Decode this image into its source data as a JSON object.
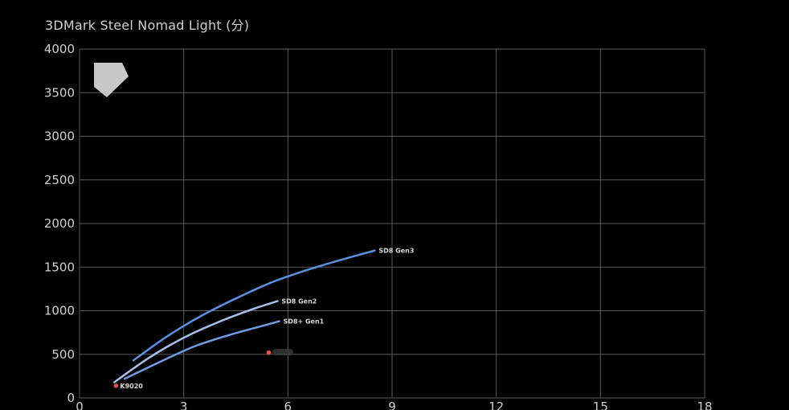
{
  "chart_data": {
    "type": "line",
    "title": "3DMark Steel Nomad Light (分)",
    "xlabel": "",
    "ylabel": "",
    "xlim": [
      0,
      18
    ],
    "ylim": [
      0,
      4000
    ],
    "x_ticks": [
      "0",
      "3",
      "6",
      "9",
      "12",
      "15",
      "18"
    ],
    "y_ticks": [
      "0",
      "500",
      "1000",
      "1500",
      "2000",
      "2500",
      "3000",
      "3500",
      "4000"
    ],
    "grid": true,
    "series": [
      {
        "name": "SD8 Gen3",
        "color": "#5b8fe0",
        "x": [
          1.55,
          2.5,
          3.5,
          4.5,
          5.5,
          6.5,
          7.5,
          8.5
        ],
        "y": [
          430,
          700,
          940,
          1140,
          1320,
          1460,
          1580,
          1690
        ]
      },
      {
        "name": "SD8 Gen2",
        "color": "#a8c0e8",
        "x": [
          1.0,
          2.0,
          3.0,
          4.0,
          5.0,
          5.7
        ],
        "y": [
          180,
          460,
          690,
          870,
          1020,
          1110
        ]
      },
      {
        "name": "SD8+ Gen1",
        "color": "#6f9de4",
        "x": [
          1.3,
          2.3,
          3.3,
          4.3,
          5.3,
          5.75
        ],
        "y": [
          220,
          410,
          590,
          720,
          830,
          880
        ]
      }
    ],
    "points": [
      {
        "name": "K9020",
        "x": 1.05,
        "y": 140,
        "color": "#e05252"
      },
      {
        "name": "",
        "x": 5.45,
        "y": 520,
        "color": "#e05252"
      }
    ]
  }
}
